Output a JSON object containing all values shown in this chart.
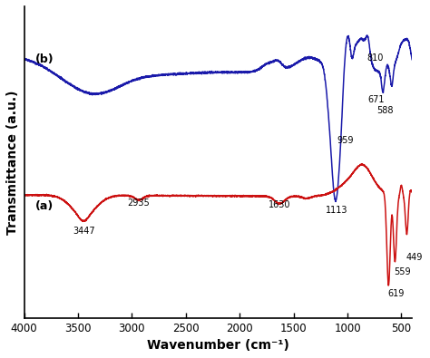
{
  "xlabel": "Wavenumber (cm⁻¹)",
  "ylabel": "Transmittance (a.u.)",
  "xlim": [
    4000,
    400
  ],
  "background_color": "#ffffff",
  "line_a_color": "#cc1111",
  "line_b_color": "#1a1aaa",
  "label_a": "(a)",
  "label_b": "(b)",
  "xticks": [
    4000,
    3500,
    3000,
    2500,
    2000,
    1500,
    1000,
    500
  ]
}
